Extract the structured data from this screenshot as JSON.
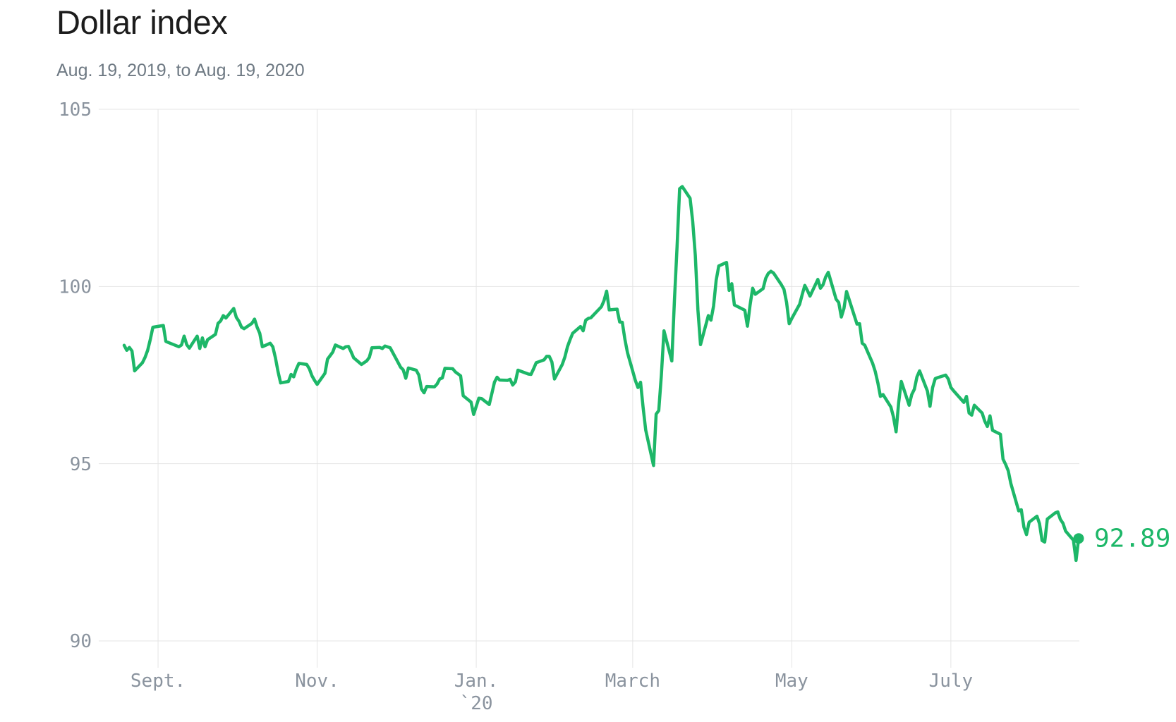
{
  "chart_data": {
    "type": "line",
    "title": "Dollar index",
    "subtitle": "Aug. 19, 2019, to Aug. 19, 2020",
    "xlabel": "",
    "ylabel": "",
    "ylim": [
      90,
      105
    ],
    "x_range": [
      "2019-08-19",
      "2020-08-19"
    ],
    "grid": true,
    "legend_position": "none",
    "yticks": [
      {
        "value": 105,
        "label": "105"
      },
      {
        "value": 100,
        "label": "100"
      },
      {
        "value": 95,
        "label": "95"
      },
      {
        "value": 90,
        "label": "90"
      }
    ],
    "xticks": [
      {
        "date": "2019-09-01",
        "label": "Sept.",
        "year_label": ""
      },
      {
        "date": "2019-11-01",
        "label": "Nov.",
        "year_label": ""
      },
      {
        "date": "2020-01-01",
        "label": "Jan.",
        "year_label": "`20"
      },
      {
        "date": "2020-03-01",
        "label": "March",
        "year_label": ""
      },
      {
        "date": "2020-05-01",
        "label": "May",
        "year_label": ""
      },
      {
        "date": "2020-07-01",
        "label": "July",
        "year_label": ""
      }
    ],
    "end_label": "92.89",
    "colors": {
      "line": "#1db768",
      "grid": "#e4e4e4",
      "tick_text": "#8a939e",
      "title_text": "#1c1c1c",
      "subtitle_text": "#6e7983"
    },
    "series": [
      {
        "name": "Dollar index",
        "points": [
          [
            "2019-08-19",
            98.34
          ],
          [
            "2019-08-20",
            98.2
          ],
          [
            "2019-08-21",
            98.28
          ],
          [
            "2019-08-22",
            98.18
          ],
          [
            "2019-08-23",
            97.62
          ],
          [
            "2019-08-26",
            97.85
          ],
          [
            "2019-08-27",
            98.0
          ],
          [
            "2019-08-28",
            98.2
          ],
          [
            "2019-08-29",
            98.5
          ],
          [
            "2019-08-30",
            98.85
          ],
          [
            "2019-09-03",
            98.9
          ],
          [
            "2019-09-04",
            98.45
          ],
          [
            "2019-09-05",
            98.42
          ],
          [
            "2019-09-06",
            98.39
          ],
          [
            "2019-09-09",
            98.3
          ],
          [
            "2019-09-10",
            98.35
          ],
          [
            "2019-09-11",
            98.6
          ],
          [
            "2019-09-12",
            98.36
          ],
          [
            "2019-09-13",
            98.26
          ],
          [
            "2019-09-16",
            98.6
          ],
          [
            "2019-09-17",
            98.25
          ],
          [
            "2019-09-18",
            98.55
          ],
          [
            "2019-09-19",
            98.3
          ],
          [
            "2019-09-20",
            98.5
          ],
          [
            "2019-09-23",
            98.65
          ],
          [
            "2019-09-24",
            98.96
          ],
          [
            "2019-09-25",
            99.03
          ],
          [
            "2019-09-26",
            99.18
          ],
          [
            "2019-09-27",
            99.11
          ],
          [
            "2019-09-30",
            99.38
          ],
          [
            "2019-10-01",
            99.13
          ],
          [
            "2019-10-02",
            99.02
          ],
          [
            "2019-10-03",
            98.85
          ],
          [
            "2019-10-04",
            98.81
          ],
          [
            "2019-10-07",
            98.96
          ],
          [
            "2019-10-08",
            99.08
          ],
          [
            "2019-10-09",
            98.85
          ],
          [
            "2019-10-10",
            98.68
          ],
          [
            "2019-10-11",
            98.3
          ],
          [
            "2019-10-14",
            98.4
          ],
          [
            "2019-10-15",
            98.3
          ],
          [
            "2019-10-16",
            97.99
          ],
          [
            "2019-10-17",
            97.6
          ],
          [
            "2019-10-18",
            97.28
          ],
          [
            "2019-10-21",
            97.32
          ],
          [
            "2019-10-22",
            97.52
          ],
          [
            "2019-10-23",
            97.45
          ],
          [
            "2019-10-24",
            97.67
          ],
          [
            "2019-10-25",
            97.83
          ],
          [
            "2019-10-28",
            97.8
          ],
          [
            "2019-10-29",
            97.68
          ],
          [
            "2019-10-30",
            97.48
          ],
          [
            "2019-10-31",
            97.35
          ],
          [
            "2019-11-01",
            97.24
          ],
          [
            "2019-11-04",
            97.55
          ],
          [
            "2019-11-05",
            97.95
          ],
          [
            "2019-11-06",
            98.05
          ],
          [
            "2019-11-07",
            98.15
          ],
          [
            "2019-11-08",
            98.35
          ],
          [
            "2019-11-11",
            98.25
          ],
          [
            "2019-11-12",
            98.3
          ],
          [
            "2019-11-13",
            98.31
          ],
          [
            "2019-11-14",
            98.16
          ],
          [
            "2019-11-15",
            97.99
          ],
          [
            "2019-11-18",
            97.8
          ],
          [
            "2019-11-19",
            97.85
          ],
          [
            "2019-11-20",
            97.9
          ],
          [
            "2019-11-21",
            98.0
          ],
          [
            "2019-11-22",
            98.27
          ],
          [
            "2019-11-25",
            98.28
          ],
          [
            "2019-11-26",
            98.25
          ],
          [
            "2019-11-27",
            98.32
          ],
          [
            "2019-11-29",
            98.27
          ],
          [
            "2019-12-02",
            97.86
          ],
          [
            "2019-12-03",
            97.72
          ],
          [
            "2019-12-04",
            97.65
          ],
          [
            "2019-12-05",
            97.41
          ],
          [
            "2019-12-06",
            97.7
          ],
          [
            "2019-12-09",
            97.64
          ],
          [
            "2019-12-10",
            97.5
          ],
          [
            "2019-12-11",
            97.11
          ],
          [
            "2019-12-12",
            97.0
          ],
          [
            "2019-12-13",
            97.18
          ],
          [
            "2019-12-16",
            97.17
          ],
          [
            "2019-12-17",
            97.25
          ],
          [
            "2019-12-18",
            97.39
          ],
          [
            "2019-12-19",
            97.42
          ],
          [
            "2019-12-20",
            97.69
          ],
          [
            "2019-12-23",
            97.68
          ],
          [
            "2019-12-24",
            97.59
          ],
          [
            "2019-12-26",
            97.48
          ],
          [
            "2019-12-27",
            96.92
          ],
          [
            "2019-12-30",
            96.74
          ],
          [
            "2019-12-31",
            96.39
          ],
          [
            "2020-01-02",
            96.85
          ],
          [
            "2020-01-03",
            96.84
          ],
          [
            "2020-01-06",
            96.67
          ],
          [
            "2020-01-07",
            96.98
          ],
          [
            "2020-01-08",
            97.3
          ],
          [
            "2020-01-09",
            97.44
          ],
          [
            "2020-01-10",
            97.36
          ],
          [
            "2020-01-13",
            97.35
          ],
          [
            "2020-01-14",
            97.38
          ],
          [
            "2020-01-15",
            97.22
          ],
          [
            "2020-01-16",
            97.31
          ],
          [
            "2020-01-17",
            97.64
          ],
          [
            "2020-01-21",
            97.53
          ],
          [
            "2020-01-22",
            97.52
          ],
          [
            "2020-01-23",
            97.68
          ],
          [
            "2020-01-24",
            97.85
          ],
          [
            "2020-01-27",
            97.93
          ],
          [
            "2020-01-28",
            98.03
          ],
          [
            "2020-01-29",
            98.03
          ],
          [
            "2020-01-30",
            97.87
          ],
          [
            "2020-01-31",
            97.39
          ],
          [
            "2020-02-03",
            97.8
          ],
          [
            "2020-02-04",
            98.01
          ],
          [
            "2020-02-05",
            98.3
          ],
          [
            "2020-02-06",
            98.5
          ],
          [
            "2020-02-07",
            98.68
          ],
          [
            "2020-02-10",
            98.87
          ],
          [
            "2020-02-11",
            98.75
          ],
          [
            "2020-02-12",
            99.05
          ],
          [
            "2020-02-13",
            99.1
          ],
          [
            "2020-02-14",
            99.12
          ],
          [
            "2020-02-18",
            99.43
          ],
          [
            "2020-02-19",
            99.6
          ],
          [
            "2020-02-20",
            99.87
          ],
          [
            "2020-02-21",
            99.34
          ],
          [
            "2020-02-24",
            99.36
          ],
          [
            "2020-02-25",
            99.0
          ],
          [
            "2020-02-26",
            98.99
          ],
          [
            "2020-02-27",
            98.51
          ],
          [
            "2020-02-28",
            98.13
          ],
          [
            "2020-03-02",
            97.35
          ],
          [
            "2020-03-03",
            97.15
          ],
          [
            "2020-03-04",
            97.3
          ],
          [
            "2020-03-05",
            96.59
          ],
          [
            "2020-03-06",
            95.95
          ],
          [
            "2020-03-09",
            94.95
          ],
          [
            "2020-03-10",
            96.4
          ],
          [
            "2020-03-11",
            96.5
          ],
          [
            "2020-03-12",
            97.5
          ],
          [
            "2020-03-13",
            98.75
          ],
          [
            "2020-03-16",
            97.9
          ],
          [
            "2020-03-17",
            99.6
          ],
          [
            "2020-03-18",
            101.1
          ],
          [
            "2020-03-19",
            102.76
          ],
          [
            "2020-03-20",
            102.82
          ],
          [
            "2020-03-23",
            102.49
          ],
          [
            "2020-03-24",
            101.84
          ],
          [
            "2020-03-25",
            100.88
          ],
          [
            "2020-03-26",
            99.34
          ],
          [
            "2020-03-27",
            98.36
          ],
          [
            "2020-03-30",
            99.18
          ],
          [
            "2020-03-31",
            99.05
          ],
          [
            "2020-04-01",
            99.45
          ],
          [
            "2020-04-02",
            100.18
          ],
          [
            "2020-04-03",
            100.58
          ],
          [
            "2020-04-06",
            100.68
          ],
          [
            "2020-04-07",
            99.89
          ],
          [
            "2020-04-08",
            100.08
          ],
          [
            "2020-04-09",
            99.48
          ],
          [
            "2020-04-13",
            99.33
          ],
          [
            "2020-04-14",
            98.88
          ],
          [
            "2020-04-15",
            99.47
          ],
          [
            "2020-04-16",
            99.95
          ],
          [
            "2020-04-17",
            99.78
          ],
          [
            "2020-04-20",
            99.94
          ],
          [
            "2020-04-21",
            100.23
          ],
          [
            "2020-04-22",
            100.37
          ],
          [
            "2020-04-23",
            100.43
          ],
          [
            "2020-04-24",
            100.38
          ],
          [
            "2020-04-27",
            100.05
          ],
          [
            "2020-04-28",
            99.92
          ],
          [
            "2020-04-29",
            99.55
          ],
          [
            "2020-04-30",
            98.95
          ],
          [
            "2020-05-01",
            99.1
          ],
          [
            "2020-05-04",
            99.5
          ],
          [
            "2020-05-05",
            99.77
          ],
          [
            "2020-05-06",
            100.03
          ],
          [
            "2020-05-07",
            99.89
          ],
          [
            "2020-05-08",
            99.73
          ],
          [
            "2020-05-11",
            100.2
          ],
          [
            "2020-05-12",
            99.95
          ],
          [
            "2020-05-13",
            100.05
          ],
          [
            "2020-05-14",
            100.27
          ],
          [
            "2020-05-15",
            100.4
          ],
          [
            "2020-05-18",
            99.64
          ],
          [
            "2020-05-19",
            99.55
          ],
          [
            "2020-05-20",
            99.14
          ],
          [
            "2020-05-21",
            99.38
          ],
          [
            "2020-05-22",
            99.86
          ],
          [
            "2020-05-26",
            98.94
          ],
          [
            "2020-05-27",
            98.95
          ],
          [
            "2020-05-28",
            98.4
          ],
          [
            "2020-05-29",
            98.34
          ],
          [
            "2020-06-01",
            97.83
          ],
          [
            "2020-06-02",
            97.6
          ],
          [
            "2020-06-03",
            97.28
          ],
          [
            "2020-06-04",
            96.9
          ],
          [
            "2020-06-05",
            96.95
          ],
          [
            "2020-06-08",
            96.6
          ],
          [
            "2020-06-09",
            96.32
          ],
          [
            "2020-06-10",
            95.9
          ],
          [
            "2020-06-11",
            96.73
          ],
          [
            "2020-06-12",
            97.32
          ],
          [
            "2020-06-15",
            96.65
          ],
          [
            "2020-06-16",
            96.95
          ],
          [
            "2020-06-17",
            97.1
          ],
          [
            "2020-06-18",
            97.45
          ],
          [
            "2020-06-19",
            97.62
          ],
          [
            "2020-06-22",
            97.05
          ],
          [
            "2020-06-23",
            96.62
          ],
          [
            "2020-06-24",
            97.15
          ],
          [
            "2020-06-25",
            97.4
          ],
          [
            "2020-06-26",
            97.43
          ],
          [
            "2020-06-29",
            97.5
          ],
          [
            "2020-06-30",
            97.39
          ],
          [
            "2020-07-01",
            97.15
          ],
          [
            "2020-07-02",
            97.06
          ],
          [
            "2020-07-06",
            96.73
          ],
          [
            "2020-07-07",
            96.9
          ],
          [
            "2020-07-08",
            96.43
          ],
          [
            "2020-07-09",
            96.37
          ],
          [
            "2020-07-10",
            96.65
          ],
          [
            "2020-07-13",
            96.43
          ],
          [
            "2020-07-14",
            96.2
          ],
          [
            "2020-07-15",
            96.05
          ],
          [
            "2020-07-16",
            96.35
          ],
          [
            "2020-07-17",
            95.94
          ],
          [
            "2020-07-20",
            95.83
          ],
          [
            "2020-07-21",
            95.13
          ],
          [
            "2020-07-22",
            94.98
          ],
          [
            "2020-07-23",
            94.8
          ],
          [
            "2020-07-24",
            94.44
          ],
          [
            "2020-07-27",
            93.67
          ],
          [
            "2020-07-28",
            93.7
          ],
          [
            "2020-07-29",
            93.21
          ],
          [
            "2020-07-30",
            93.0
          ],
          [
            "2020-07-31",
            93.35
          ],
          [
            "2020-08-03",
            93.52
          ],
          [
            "2020-08-04",
            93.31
          ],
          [
            "2020-08-05",
            92.83
          ],
          [
            "2020-08-06",
            92.79
          ],
          [
            "2020-08-07",
            93.44
          ],
          [
            "2020-08-10",
            93.61
          ],
          [
            "2020-08-11",
            93.64
          ],
          [
            "2020-08-12",
            93.43
          ],
          [
            "2020-08-13",
            93.32
          ],
          [
            "2020-08-14",
            93.1
          ],
          [
            "2020-08-17",
            92.84
          ],
          [
            "2020-08-18",
            92.27
          ],
          [
            "2020-08-19",
            92.89
          ]
        ]
      }
    ]
  }
}
